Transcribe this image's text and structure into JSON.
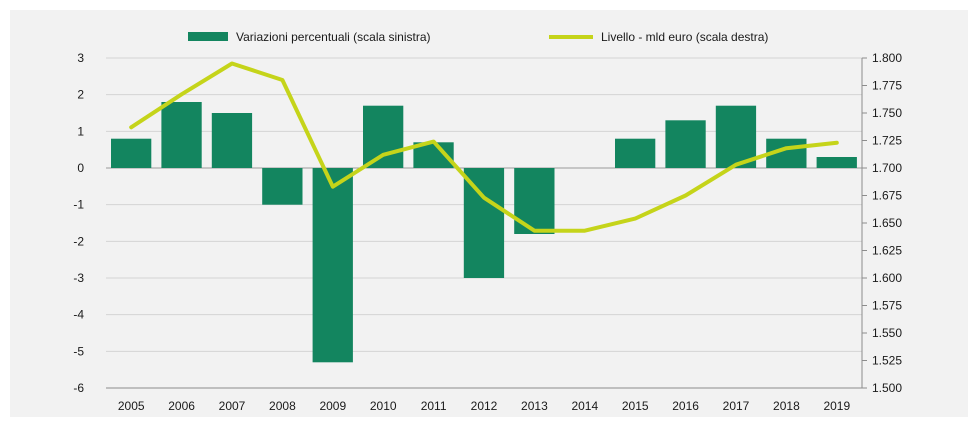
{
  "chart_data": {
    "type": "bar+line",
    "categories": [
      "2005",
      "2006",
      "2007",
      "2008",
      "2009",
      "2010",
      "2011",
      "2012",
      "2013",
      "2014",
      "2015",
      "2016",
      "2017",
      "2018",
      "2019"
    ],
    "series": [
      {
        "name": "Variazioni percentuali (scala sinistra)",
        "type": "bar",
        "axis": "left",
        "color": "#13855f",
        "values": [
          0.8,
          1.8,
          1.5,
          -1.0,
          -5.3,
          1.7,
          0.7,
          -3.0,
          -1.8,
          0.0,
          0.8,
          1.3,
          1.7,
          0.8,
          0.3
        ]
      },
      {
        "name": "Livello - mld euro (scala destra)",
        "type": "line",
        "axis": "right",
        "color": "#c5d41a",
        "values": [
          1737,
          1767,
          1795,
          1780,
          1683,
          1712,
          1724,
          1673,
          1643,
          1643,
          1654,
          1675,
          1703,
          1718,
          1723
        ]
      }
    ],
    "y_left": {
      "min": -6,
      "max": 3,
      "ticks": [
        3,
        2,
        1,
        0,
        -1,
        -2,
        -3,
        -4,
        -5,
        -6
      ],
      "tick_labels": [
        "3",
        "2",
        "1",
        "0",
        "-1",
        "-2",
        "-3",
        "-4",
        "-5",
        "-6"
      ]
    },
    "y_right": {
      "min": 1500,
      "max": 1800,
      "ticks": [
        1800,
        1775,
        1750,
        1725,
        1700,
        1675,
        1650,
        1625,
        1600,
        1575,
        1550,
        1525,
        1500
      ],
      "tick_labels": [
        "1.800",
        "1.775",
        "1.750",
        "1.725",
        "1.700",
        "1.675",
        "1.650",
        "1.625",
        "1.600",
        "1.575",
        "1.550",
        "1.525",
        "1.500"
      ]
    },
    "grid": true,
    "legend_position": "top-center"
  }
}
